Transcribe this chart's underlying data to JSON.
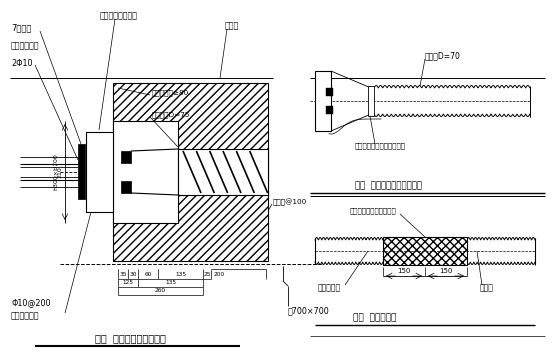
{
  "title1": "图一  有粘结张拉端构造图",
  "title2": "图二  锚垫板与波纹管的连接",
  "title3": "图三  波纹管接头",
  "bg_color": "#ffffff"
}
